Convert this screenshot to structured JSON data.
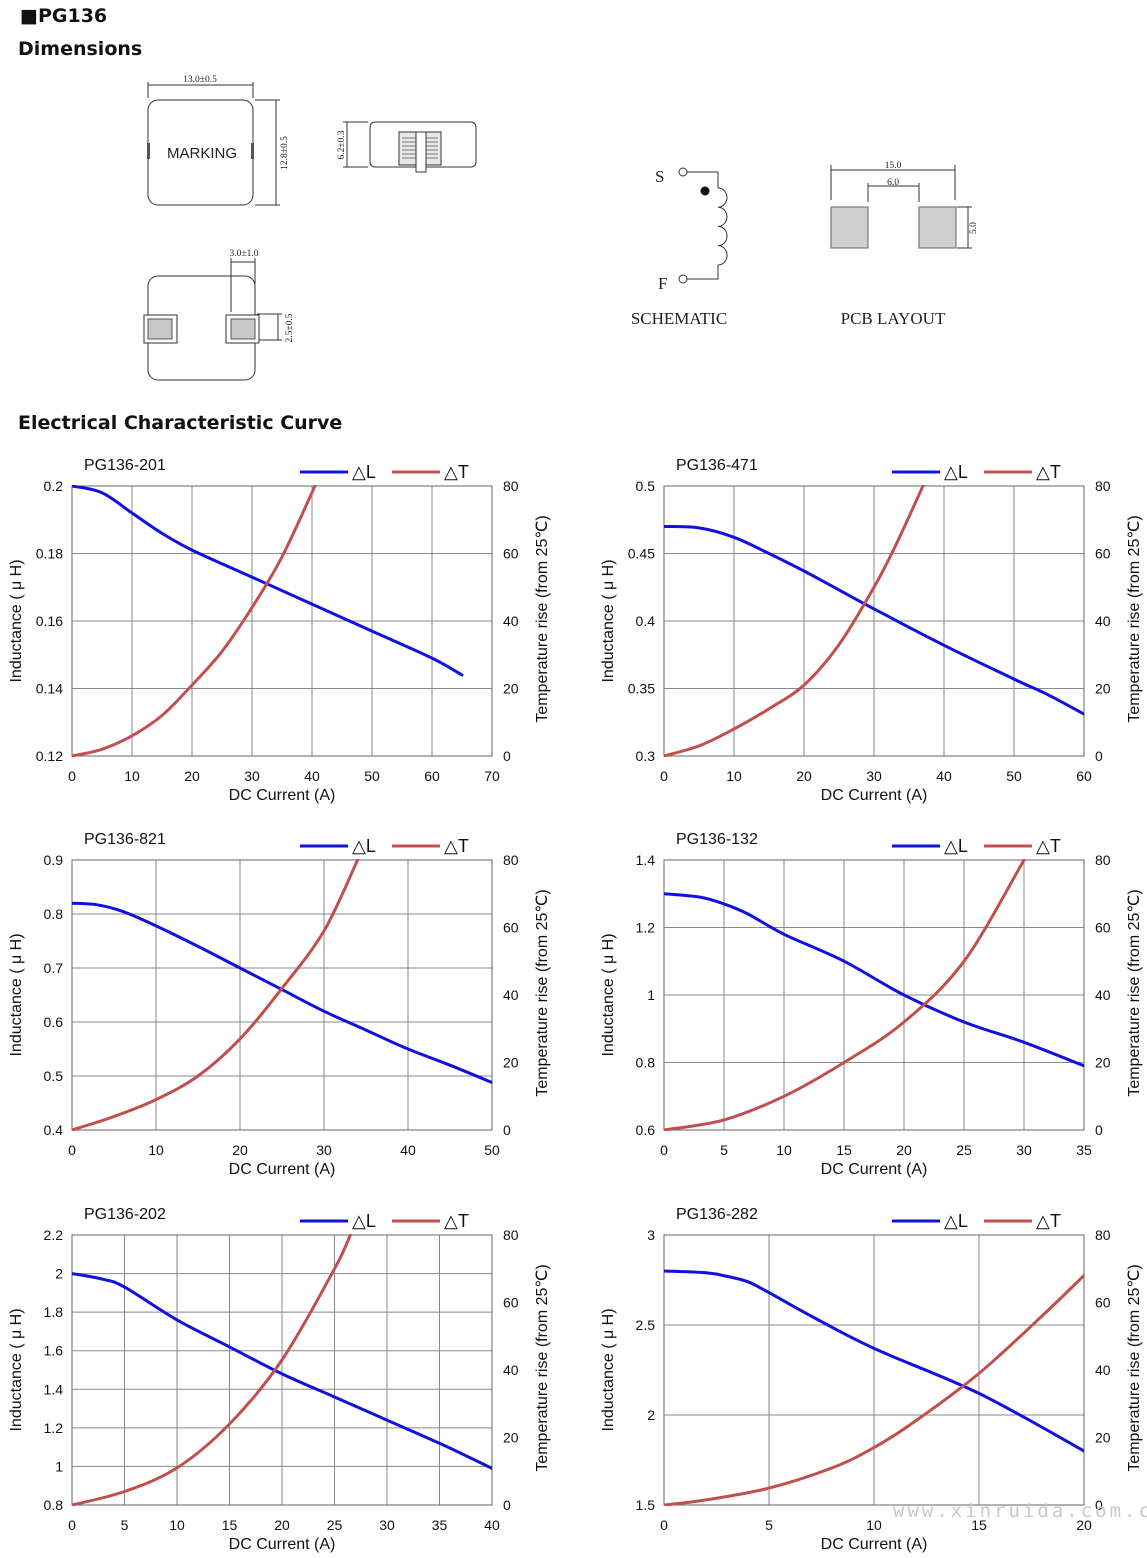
{
  "header": {
    "bullet": "■",
    "product": "PG136",
    "section_dimensions": "Dimensions",
    "section_curves": "Electrical Characteristic Curve"
  },
  "dimensions": {
    "top_view": {
      "marking": "MARKING",
      "width": "13.0±0.5",
      "height": "12.8±0.5"
    },
    "side_view": {
      "height": "6.2±0.3"
    },
    "bottom_view": {
      "pad_width": "3.0±1.0",
      "pad_height": "2.5±0.5"
    },
    "schematic": {
      "start": "S",
      "finish": "F",
      "label": "SCHEMATIC"
    },
    "pcb_layout": {
      "overall": "15.0",
      "gap": "6.0",
      "pad": "5.0",
      "label": "PCB LAYOUT"
    }
  },
  "colors": {
    "inductance": "#1010e0",
    "temperature": "#c0504d",
    "grid": "#8a8a8a"
  },
  "watermark": "www.xinruida.com.cn",
  "chart_data": [
    {
      "type": "line",
      "title": "PG136-201",
      "xlabel": "DC Current (A)",
      "ylabel": "Inductance ( μ H)",
      "y2label": "Temperature rise (from 25℃)",
      "legend": [
        "△L",
        "△T"
      ],
      "xlim": [
        0,
        70
      ],
      "xticks": [
        0,
        10,
        20,
        30,
        40,
        50,
        60,
        70
      ],
      "ylim": [
        0.12,
        0.2
      ],
      "yticks": [
        0.12,
        0.14,
        0.16,
        0.18,
        0.2
      ],
      "yticklabels": [
        "0.12",
        "0.14",
        "0.16",
        "0.18",
        "0.2"
      ],
      "y2lim": [
        0,
        80
      ],
      "y2ticks": [
        0,
        20,
        40,
        60,
        80
      ],
      "series": [
        {
          "name": "△L",
          "axis": "left",
          "x": [
            0,
            5,
            10,
            15,
            20,
            30,
            40,
            50,
            60,
            65
          ],
          "y": [
            0.2,
            0.198,
            0.192,
            0.186,
            0.181,
            0.173,
            0.165,
            0.157,
            0.149,
            0.144
          ]
        },
        {
          "name": "△T",
          "axis": "right",
          "x": [
            0,
            5,
            10,
            15,
            20,
            25,
            30,
            35,
            40.5
          ],
          "y": [
            0,
            2,
            6,
            12,
            21,
            31,
            44,
            59,
            80
          ]
        }
      ]
    },
    {
      "type": "line",
      "title": "PG136-471",
      "xlabel": "DC Current (A)",
      "ylabel": "Inductance ( μ H)",
      "y2label": "Temperature rise (from 25℃)",
      "legend": [
        "△L",
        "△T"
      ],
      "xlim": [
        0,
        60
      ],
      "xticks": [
        0,
        10,
        20,
        30,
        40,
        50,
        60
      ],
      "ylim": [
        0.3,
        0.5
      ],
      "yticks": [
        0.3,
        0.35,
        0.4,
        0.45,
        0.5
      ],
      "yticklabels": [
        "0.3",
        "0.35",
        "0.4",
        "0.45",
        "0.5"
      ],
      "y2lim": [
        0,
        80
      ],
      "y2ticks": [
        0,
        20,
        40,
        60,
        80
      ],
      "series": [
        {
          "name": "△L",
          "axis": "left",
          "x": [
            0,
            5,
            10,
            15,
            20,
            25,
            30,
            40,
            50,
            55,
            60
          ],
          "y": [
            0.47,
            0.469,
            0.462,
            0.45,
            0.437,
            0.423,
            0.409,
            0.382,
            0.357,
            0.345,
            0.331
          ]
        },
        {
          "name": "△T",
          "axis": "right",
          "x": [
            0,
            5,
            10,
            15,
            20,
            25,
            30,
            33,
            37
          ],
          "y": [
            0,
            3,
            8,
            14,
            21,
            33,
            50,
            62,
            80
          ]
        }
      ]
    },
    {
      "type": "line",
      "title": "PG136-821",
      "xlabel": "DC Current (A)",
      "ylabel": "Inductance ( μ H)",
      "y2label": "Temperature rise (from 25℃)",
      "legend": [
        "△L",
        "△T"
      ],
      "xlim": [
        0,
        50
      ],
      "xticks": [
        0,
        10,
        20,
        30,
        40,
        50
      ],
      "ylim": [
        0.4,
        0.9
      ],
      "yticks": [
        0.4,
        0.5,
        0.6,
        0.7,
        0.8,
        0.9
      ],
      "yticklabels": [
        "0.4",
        "0.5",
        "0.6",
        "0.7",
        "0.8",
        "0.9"
      ],
      "y2lim": [
        0,
        80
      ],
      "y2ticks": [
        0,
        20,
        40,
        60,
        80
      ],
      "series": [
        {
          "name": "△L",
          "axis": "left",
          "x": [
            0,
            3,
            6,
            10,
            15,
            20,
            25,
            30,
            35,
            40,
            45,
            50
          ],
          "y": [
            0.82,
            0.817,
            0.805,
            0.778,
            0.74,
            0.7,
            0.66,
            0.62,
            0.585,
            0.55,
            0.52,
            0.488
          ]
        },
        {
          "name": "△T",
          "axis": "right",
          "x": [
            0,
            5,
            10,
            15,
            20,
            25,
            30,
            34
          ],
          "y": [
            0,
            4,
            9,
            16,
            27,
            42,
            59,
            80
          ]
        }
      ]
    },
    {
      "type": "line",
      "title": "PG136-132",
      "xlabel": "DC Current (A)",
      "ylabel": "Inductance ( μ H)",
      "y2label": "Temperature rise (from 25℃)",
      "legend": [
        "△L",
        "△T"
      ],
      "xlim": [
        0,
        35
      ],
      "xticks": [
        0,
        5,
        10,
        15,
        20,
        25,
        30,
        35
      ],
      "ylim": [
        0.6,
        1.4
      ],
      "yticks": [
        0.6,
        0.8,
        1.0,
        1.2,
        1.4
      ],
      "yticklabels": [
        "0.6",
        "0.8",
        "1",
        "1.2",
        "1.4"
      ],
      "y2lim": [
        0,
        80
      ],
      "y2ticks": [
        0,
        20,
        40,
        60,
        80
      ],
      "series": [
        {
          "name": "△L",
          "axis": "left",
          "x": [
            0,
            3,
            5,
            7,
            10,
            15,
            20,
            25,
            30,
            35
          ],
          "y": [
            1.3,
            1.29,
            1.27,
            1.24,
            1.18,
            1.1,
            1.0,
            0.92,
            0.86,
            0.79
          ]
        },
        {
          "name": "△T",
          "axis": "right",
          "x": [
            0,
            5,
            10,
            15,
            20,
            25,
            30
          ],
          "y": [
            0,
            3,
            10,
            20,
            32,
            50,
            80
          ]
        }
      ]
    },
    {
      "type": "line",
      "title": "PG136-202",
      "xlabel": "DC Current (A)",
      "ylabel": "Inductance ( μ H)",
      "y2label": "Temperature rise (from 25℃)",
      "legend": [
        "△L",
        "△T"
      ],
      "xlim": [
        0,
        40
      ],
      "xticks": [
        0,
        5,
        10,
        15,
        20,
        25,
        30,
        35,
        40
      ],
      "ylim": [
        0.8,
        2.2
      ],
      "yticks": [
        0.8,
        1.0,
        1.2,
        1.4,
        1.6,
        1.8,
        2.0,
        2.2
      ],
      "yticklabels": [
        "0.8",
        "1",
        "1.2",
        "1.4",
        "1.6",
        "1.8",
        "2",
        "2.2"
      ],
      "y2lim": [
        0,
        80
      ],
      "y2ticks": [
        0,
        20,
        40,
        60,
        80
      ],
      "series": [
        {
          "name": "△L",
          "axis": "left",
          "x": [
            0,
            3,
            5,
            10,
            15,
            20,
            25,
            30,
            35,
            40
          ],
          "y": [
            2.0,
            1.97,
            1.93,
            1.76,
            1.62,
            1.48,
            1.36,
            1.24,
            1.12,
            0.99
          ]
        },
        {
          "name": "△T",
          "axis": "right",
          "x": [
            0,
            5,
            10,
            15,
            20,
            25,
            26.5
          ],
          "y": [
            0,
            4,
            11,
            24,
            43,
            70,
            80
          ]
        }
      ]
    },
    {
      "type": "line",
      "title": "PG136-282",
      "xlabel": "DC Current (A)",
      "ylabel": "Inductance ( μ H)",
      "y2label": "Temperature rise (from 25℃)",
      "legend": [
        "△L",
        "△T"
      ],
      "xlim": [
        0,
        20
      ],
      "xticks": [
        0,
        5,
        10,
        15,
        20
      ],
      "ylim": [
        1.5,
        3.0
      ],
      "yticks": [
        1.5,
        2.0,
        2.5,
        3.0
      ],
      "yticklabels": [
        "1.5",
        "2",
        "2.5",
        "3"
      ],
      "y2lim": [
        0,
        80
      ],
      "y2ticks": [
        0,
        20,
        40,
        60,
        80
      ],
      "series": [
        {
          "name": "△L",
          "axis": "left",
          "x": [
            0,
            2,
            3,
            4,
            5,
            7,
            10,
            15,
            20
          ],
          "y": [
            2.8,
            2.79,
            2.77,
            2.74,
            2.68,
            2.55,
            2.37,
            2.12,
            1.8
          ]
        },
        {
          "name": "△T",
          "axis": "right",
          "x": [
            0,
            2,
            5,
            8,
            10,
            12,
            15,
            18,
            20
          ],
          "y": [
            0,
            1.5,
            5,
            11,
            17,
            25,
            39,
            56,
            68
          ]
        }
      ]
    }
  ]
}
